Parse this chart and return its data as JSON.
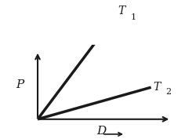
{
  "background_color": "#ffffff",
  "line_color": "#1a1a1a",
  "axes_color": "#1a1a1a",
  "T1_slope": 2.6,
  "T2_slope": 0.55,
  "figsize": [
    2.36,
    1.77
  ],
  "dpi": 100,
  "ox": 0.2,
  "oy": 0.2,
  "P_label": "P",
  "D_label": "D",
  "T1_label": "T",
  "T1_sub": "1",
  "T2_label": "T",
  "T2_sub": "2"
}
